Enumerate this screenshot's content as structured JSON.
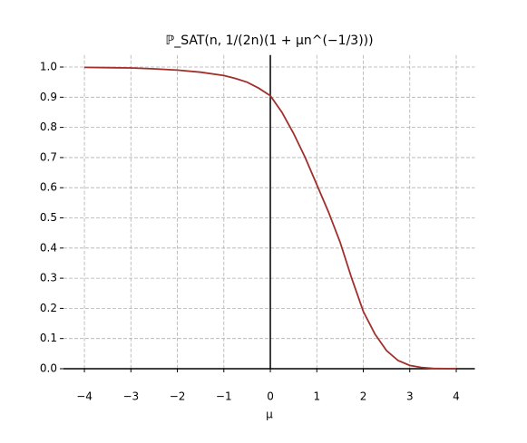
{
  "chart_data": {
    "type": "line",
    "title": "ℙ_SAT(n, 1/(2n)(1 + μn^(−1/3)))",
    "xlabel": "μ",
    "x": [
      -4,
      -3.5,
      -3,
      -2.5,
      -2,
      -1.5,
      -1,
      -0.75,
      -0.5,
      -0.25,
      0,
      0.25,
      0.5,
      0.75,
      1,
      1.25,
      1.5,
      1.75,
      2,
      2.25,
      2.5,
      2.75,
      3,
      3.25,
      3.5,
      3.75,
      4
    ],
    "series": [
      {
        "color": "#a0302c",
        "values": [
          0.999,
          0.998,
          0.997,
          0.994,
          0.99,
          0.983,
          0.972,
          0.962,
          0.95,
          0.93,
          0.905,
          0.85,
          0.78,
          0.7,
          0.61,
          0.52,
          0.42,
          0.3,
          0.19,
          0.115,
          0.06,
          0.027,
          0.011,
          0.004,
          0.001,
          0.0003,
          0
        ]
      }
    ],
    "xlim": [
      -4.45,
      4.4
    ],
    "ylim": [
      0,
      1.04
    ],
    "xticks": [
      {
        "value": -4,
        "label": "−4"
      },
      {
        "value": -3,
        "label": "−3"
      },
      {
        "value": -2,
        "label": "−2"
      },
      {
        "value": -1,
        "label": "−1"
      },
      0,
      1,
      2,
      3,
      4
    ],
    "yticks": [
      {
        "value": 0,
        "label": "0.0"
      },
      {
        "value": 0.1,
        "label": "0.1"
      },
      {
        "value": 0.2,
        "label": "0.2"
      },
      {
        "value": 0.3,
        "label": "0.3"
      },
      {
        "value": 0.4,
        "label": "0.4"
      },
      {
        "value": 0.5,
        "label": "0.5"
      },
      {
        "value": 0.6,
        "label": "0.6"
      },
      {
        "value": 0.7,
        "label": "0.7"
      },
      {
        "value": 0.8,
        "label": "0.8"
      },
      {
        "value": 0.9,
        "label": "0.9"
      },
      {
        "value": 1,
        "label": "1.0"
      }
    ],
    "grid": true
  }
}
